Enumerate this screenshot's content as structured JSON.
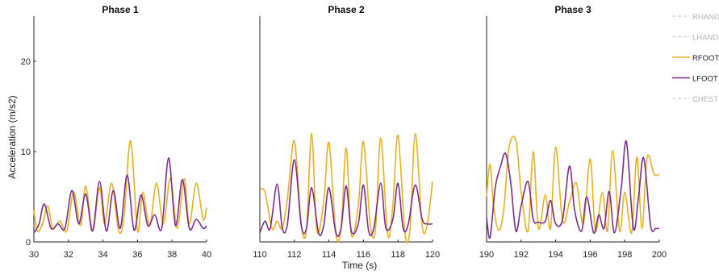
{
  "chart_data": {
    "type": "line",
    "xlabel": "Time (s)",
    "ylabel": "Acceleration (m/s2)",
    "ylim": [
      0,
      25
    ],
    "yticks": [
      0,
      10,
      20
    ],
    "legend_position": "right",
    "grid": false,
    "series_styles": [
      {
        "name": "RHAND",
        "color": "#c8c8c8",
        "dashed": true,
        "visible": false
      },
      {
        "name": "LHAND",
        "color": "#c8c8c8",
        "dashed": true,
        "visible": false
      },
      {
        "name": "RFOOT",
        "color": "#edb120",
        "dashed": false,
        "visible": true
      },
      {
        "name": "LFOOT",
        "color": "#7e2f8e",
        "dashed": false,
        "visible": true
      },
      {
        "name": "CHEST",
        "color": "#c8c8c8",
        "dashed": true,
        "visible": false
      }
    ],
    "panels": [
      {
        "title": "Phase 1",
        "xlim": [
          30,
          40
        ],
        "xticks": [
          30,
          32,
          34,
          36,
          38,
          40
        ],
        "series": [
          {
            "name": "RFOOT",
            "x": [
              30.0,
              30.2,
              30.5,
              30.8,
              31.1,
              31.5,
              31.9,
              32.3,
              32.7,
              33.0,
              33.4,
              33.8,
              34.1,
              34.5,
              34.9,
              35.2,
              35.6,
              36.0,
              36.3,
              36.7,
              37.1,
              37.5,
              37.9,
              38.3,
              38.7,
              39.0,
              39.4,
              39.8,
              40.0
            ],
            "y": [
              3.5,
              1.2,
              2.0,
              4.0,
              1.5,
              2.3,
              1.2,
              5.5,
              1.8,
              6.2,
              1.3,
              6.0,
              2.0,
              6.5,
              1.3,
              2.5,
              11.2,
              1.2,
              5.5,
              1.8,
              6.5,
              2.0,
              7.0,
              1.5,
              7.0,
              2.0,
              6.5,
              2.5,
              3.8
            ]
          },
          {
            "name": "LFOOT",
            "x": [
              30.0,
              30.3,
              30.6,
              31.0,
              31.4,
              31.8,
              32.2,
              32.6,
              33.0,
              33.4,
              33.8,
              34.2,
              34.6,
              35.0,
              35.4,
              35.8,
              36.2,
              36.6,
              37.0,
              37.4,
              37.8,
              38.2,
              38.6,
              39.0,
              39.4,
              39.8,
              40.0
            ],
            "y": [
              1.0,
              2.0,
              4.2,
              1.5,
              2.0,
              1.5,
              5.7,
              2.0,
              5.3,
              1.2,
              6.7,
              1.2,
              5.7,
              1.5,
              7.4,
              1.3,
              5.2,
              1.8,
              3.0,
              1.5,
              9.3,
              1.8,
              6.9,
              1.5,
              2.5,
              1.5,
              1.8
            ]
          }
        ]
      },
      {
        "title": "Phase 2",
        "xlim": [
          110,
          120
        ],
        "xticks": [
          110,
          112,
          114,
          116,
          118,
          120
        ],
        "series": [
          {
            "name": "RFOOT",
            "x": [
              110.0,
              110.3,
              110.7,
              111.0,
              111.3,
              111.6,
              112.0,
              112.4,
              112.7,
              113.0,
              113.3,
              113.7,
              114.0,
              114.4,
              114.7,
              115.0,
              115.3,
              115.7,
              116.0,
              116.4,
              116.7,
              117.0,
              117.4,
              117.7,
              118.0,
              118.4,
              118.7,
              119.0,
              119.4,
              119.7,
              120.0
            ],
            "y": [
              5.8,
              5.5,
              1.5,
              2.3,
              1.5,
              4.8,
              11.2,
              1.8,
              1.5,
              12.0,
              1.2,
              4.5,
              11.0,
              1.0,
              1.5,
              10.4,
              0.8,
              4.0,
              11.1,
              1.8,
              1.5,
              11.5,
              0.8,
              4.0,
              11.8,
              1.0,
              1.5,
              12.0,
              1.8,
              2.0,
              6.7
            ]
          },
          {
            "name": "LFOOT",
            "x": [
              110.0,
              110.3,
              110.6,
              111.0,
              111.3,
              111.6,
              112.0,
              112.4,
              112.7,
              113.0,
              113.4,
              113.7,
              114.0,
              114.4,
              114.7,
              115.0,
              115.3,
              115.7,
              116.0,
              116.3,
              116.6,
              117.0,
              117.3,
              117.7,
              118.0,
              118.3,
              118.6,
              119.0,
              119.4,
              119.7,
              120.0
            ],
            "y": [
              1.0,
              2.3,
              1.5,
              6.4,
              1.5,
              2.0,
              9.1,
              1.8,
              1.5,
              6.0,
              1.0,
              1.8,
              6.0,
              1.0,
              1.5,
              6.2,
              1.2,
              2.0,
              6.3,
              1.2,
              1.5,
              6.5,
              1.5,
              2.5,
              6.5,
              1.5,
              2.0,
              6.3,
              2.5,
              2.0,
              2.0
            ]
          }
        ]
      },
      {
        "title": "Phase 3",
        "xlim": [
          190,
          200
        ],
        "xticks": [
          190,
          192,
          194,
          196,
          198,
          200
        ],
        "series": [
          {
            "name": "RFOOT",
            "x": [
              190.0,
              190.2,
              190.4,
              190.7,
              191.0,
              191.3,
              191.7,
              192.0,
              192.4,
              192.7,
              193.0,
              193.4,
              193.7,
              194.0,
              194.4,
              194.8,
              195.2,
              195.6,
              196.0,
              196.3,
              196.7,
              197.0,
              197.3,
              197.7,
              198.0,
              198.4,
              198.7,
              199.0,
              199.3,
              199.7,
              200.0
            ],
            "y": [
              5.0,
              8.6,
              4.0,
              1.3,
              3.7,
              10.5,
              11.2,
              5.6,
              1.2,
              10.0,
              1.5,
              5.2,
              1.5,
              10.5,
              2.3,
              4.4,
              6.5,
              2.0,
              9.2,
              1.2,
              5.5,
              1.2,
              10.1,
              1.2,
              5.5,
              1.0,
              9.4,
              1.5,
              9.4,
              7.5,
              7.5
            ]
          },
          {
            "name": "LFOOT",
            "x": [
              190.0,
              190.2,
              190.5,
              190.8,
              191.1,
              191.4,
              191.7,
              192.0,
              192.4,
              192.7,
              193.0,
              193.4,
              193.7,
              194.0,
              194.4,
              194.8,
              195.1,
              195.5,
              195.8,
              196.2,
              196.5,
              196.8,
              197.1,
              197.4,
              197.8,
              198.1,
              198.5,
              198.8,
              199.1,
              199.5,
              199.8,
              200.0
            ],
            "y": [
              2.7,
              0.5,
              6.0,
              8.3,
              9.8,
              6.5,
              1.2,
              4.0,
              6.7,
              2.5,
              2.2,
              2.3,
              4.6,
              2.0,
              2.5,
              8.4,
              3.5,
              1.2,
              5.0,
              1.0,
              3.0,
              1.5,
              5.6,
              1.0,
              6.0,
              11.1,
              1.5,
              5.0,
              9.3,
              1.8,
              1.5,
              1.5
            ]
          }
        ]
      }
    ]
  }
}
